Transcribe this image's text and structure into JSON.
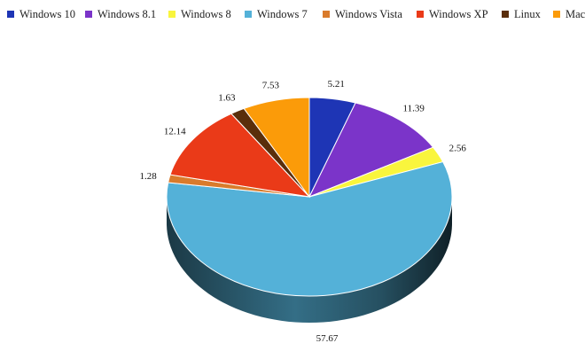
{
  "chart_data": {
    "type": "pie",
    "style": "3d",
    "legend_position": "top",
    "series": [
      {
        "name": "Windows 10",
        "value": 5.21,
        "color": "#1e35b5"
      },
      {
        "name": "Windows 8.1",
        "value": 11.39,
        "color": "#7b34c9"
      },
      {
        "name": "Windows 8",
        "value": 2.56,
        "color": "#f9f53d"
      },
      {
        "name": "Windows 7",
        "value": 57.67,
        "color": "#54b1d8"
      },
      {
        "name": "Windows Vista",
        "value": 1.28,
        "color": "#d97b2c"
      },
      {
        "name": "Windows XP",
        "value": 12.14,
        "color": "#ea3a18"
      },
      {
        "name": "Linux",
        "value": 1.63,
        "color": "#5a2e0b"
      },
      {
        "name": "Mac",
        "value": 7.53,
        "color": "#fb9b09"
      }
    ]
  }
}
